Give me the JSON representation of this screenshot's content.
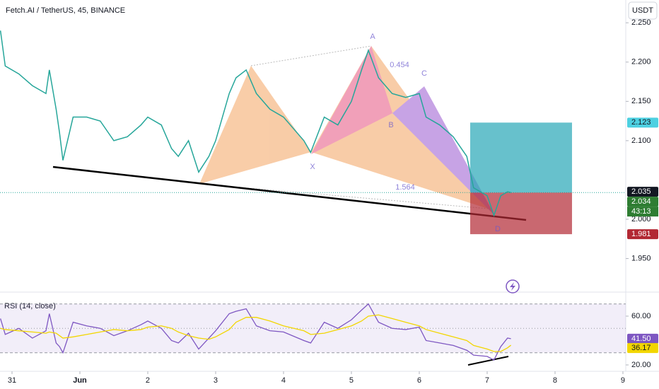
{
  "header": {
    "title": "Fetch.AI / TetherUS, 45, BINANCE",
    "currency": "USDT"
  },
  "chart_data": [
    {
      "type": "line",
      "color": "#26a69a",
      "x": [
        -0.17,
        -0.1,
        0.1,
        0.3,
        0.5,
        0.55,
        0.65,
        0.7,
        0.75,
        0.9,
        1.1,
        1.3,
        1.5,
        1.7,
        1.9,
        2.0,
        2.2,
        2.35,
        2.45,
        2.6,
        2.75,
        2.9,
        3.0,
        3.2,
        3.3,
        3.45,
        3.6,
        3.8,
        4.0,
        4.3,
        4.4,
        4.6,
        4.8,
        5.0,
        5.15,
        5.25,
        5.4,
        5.6,
        5.8,
        6.0,
        6.1,
        6.3,
        6.5,
        6.7,
        6.8,
        7.0,
        7.1,
        7.2,
        7.3,
        7.35
      ],
      "values": [
        2.24,
        2.195,
        2.185,
        2.17,
        2.16,
        2.19,
        2.14,
        2.11,
        2.075,
        2.13,
        2.13,
        2.125,
        2.1,
        2.105,
        2.12,
        2.13,
        2.12,
        2.09,
        2.08,
        2.1,
        2.06,
        2.08,
        2.1,
        2.16,
        2.18,
        2.19,
        2.16,
        2.14,
        2.13,
        2.1,
        2.085,
        2.13,
        2.12,
        2.15,
        2.19,
        2.215,
        2.18,
        2.16,
        2.155,
        2.16,
        2.13,
        2.12,
        2.105,
        2.08,
        2.04,
        2.03,
        2.005,
        2.03,
        2.035,
        2.034
      ],
      "xlim": [
        -0.177,
        9.042
      ],
      "xticks": [
        {
          "value": 0,
          "label": "31"
        },
        {
          "value": 1,
          "label": "Jun"
        },
        2,
        3,
        4,
        5,
        6,
        7,
        8,
        9
      ],
      "ylim": [
        1.91,
        2.279
      ],
      "yticks": [
        {
          "value": 2.25,
          "label": "2.250"
        },
        {
          "value": 2.2,
          "label": "2.200"
        },
        {
          "value": 2.15,
          "label": "2.150"
        },
        {
          "value": 2.1,
          "label": "2.100"
        },
        {
          "value": 2.0,
          "label": "2.000"
        },
        {
          "value": 1.95,
          "label": "1.950"
        }
      ],
      "price_badges": [
        {
          "value": 2.123,
          "color": "#4dd0e1"
        },
        {
          "value": 2.035,
          "color": "#131722"
        },
        {
          "value": 2.034,
          "color": "#2e7d32"
        },
        {
          "value": 1.981,
          "color": "#b22833"
        }
      ],
      "countdown": "43:13",
      "position": {
        "target": 2.123,
        "entry": 2.034,
        "stop": 1.981,
        "x": [
          6.75,
          8.25
        ]
      },
      "annotations": [
        "A",
        "C",
        "B",
        "X",
        "D",
        "0.454",
        "1.564"
      ]
    },
    {
      "type": "line",
      "title": "RSI (14, close)",
      "series": [
        {
          "color": "#7e57c2",
          "values": [
            58,
            45,
            50,
            42,
            48,
            62,
            38,
            35,
            30,
            55,
            52,
            50,
            44,
            48,
            53,
            56,
            50,
            40,
            38,
            46,
            33,
            42,
            48,
            62,
            64,
            66,
            52,
            48,
            47,
            40,
            38,
            55,
            50,
            57,
            65,
            70,
            55,
            50,
            49,
            51,
            40,
            38,
            36,
            32,
            28,
            27,
            24,
            35,
            42,
            41.5
          ]
        },
        {
          "color": "#f2d600",
          "values": [
            50,
            49,
            48,
            47,
            46,
            47,
            46,
            44,
            42,
            43,
            45,
            47,
            49,
            48,
            49,
            51,
            52,
            50,
            47,
            44,
            42,
            41,
            43,
            49,
            55,
            59,
            59,
            56,
            52,
            48,
            45,
            46,
            49,
            52,
            56,
            60,
            61,
            58,
            55,
            52,
            49,
            46,
            43,
            40,
            36,
            33,
            31,
            31,
            34,
            36.17
          ]
        }
      ],
      "ylim": [
        16.5,
        76.8
      ],
      "yticks": [
        {
          "value": 60,
          "label": "60.00"
        },
        {
          "value": 20,
          "label": "20.00"
        }
      ],
      "bands": [
        70,
        50,
        30
      ],
      "badges": [
        {
          "value": 41.5,
          "label": "41.50",
          "color": "#7e57c2"
        },
        {
          "value": 36.17,
          "color": "#f2d600"
        }
      ]
    }
  ]
}
